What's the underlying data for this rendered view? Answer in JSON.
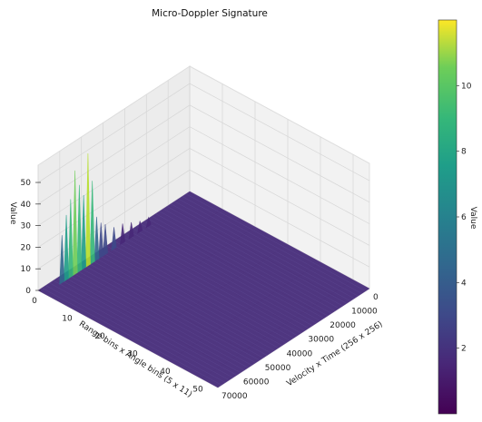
{
  "chart_data": {
    "type": "surface3d",
    "title": "Micro-Doppler Signature",
    "xlabel": "Velocity x Time (256 x 256)",
    "ylabel": "Range bins x Angle bins (5 x 11)",
    "zlabel": "Value",
    "colorbar_label": "Value",
    "colormap": "viridis",
    "xlim": [
      0,
      70000
    ],
    "ylim": [
      0,
      55
    ],
    "zlim": [
      0,
      58
    ],
    "clim": [
      0,
      12
    ],
    "x_ticks": [
      0,
      10000,
      20000,
      30000,
      40000,
      50000,
      60000,
      70000
    ],
    "y_ticks": [
      0,
      10,
      20,
      30,
      40,
      50
    ],
    "z_ticks": [
      0,
      10,
      20,
      30,
      40,
      50
    ],
    "colorbar_ticks": [
      2,
      4,
      6,
      8,
      10
    ],
    "grid": true,
    "description_points": {
      "peak_row_y": 0,
      "baseline_value": 0,
      "peaks": [
        {
          "x": 62000,
          "z": 22
        },
        {
          "x": 60000,
          "z": 30
        },
        {
          "x": 58000,
          "z": 36
        },
        {
          "x": 56000,
          "z": 48
        },
        {
          "x": 54000,
          "z": 40
        },
        {
          "x": 52000,
          "z": 34
        },
        {
          "x": 50000,
          "z": 52
        },
        {
          "x": 48000,
          "z": 38
        },
        {
          "x": 46000,
          "z": 20
        },
        {
          "x": 44000,
          "z": 16
        },
        {
          "x": 42000,
          "z": 14
        },
        {
          "x": 38000,
          "z": 10
        },
        {
          "x": 34000,
          "z": 9
        },
        {
          "x": 30000,
          "z": 7
        },
        {
          "x": 26000,
          "z": 5
        },
        {
          "x": 22000,
          "z": 4
        }
      ]
    }
  }
}
